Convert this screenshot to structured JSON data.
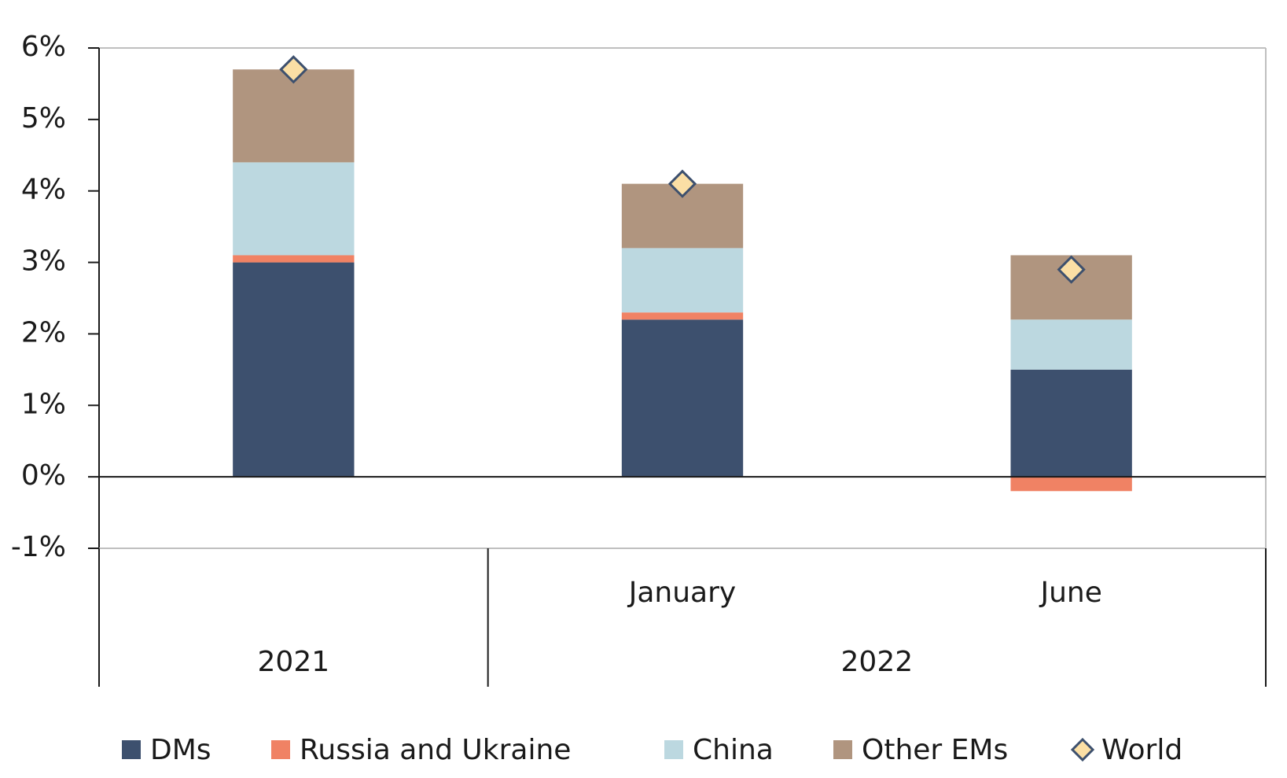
{
  "chart_data": {
    "type": "bar",
    "stacked": true,
    "categories": [
      null,
      "January",
      "June"
    ],
    "groups": [
      {
        "label": "2021",
        "span": 1
      },
      {
        "label": "2022",
        "span": 2
      }
    ],
    "series": [
      {
        "name": "DMs",
        "color": "#3d506e",
        "values": [
          3.0,
          2.2,
          1.5
        ]
      },
      {
        "name": "Russia and Ukraine",
        "color": "#f08264",
        "values": [
          0.1,
          0.1,
          -0.2
        ]
      },
      {
        "name": "China",
        "color": "#bcd8e0",
        "values": [
          1.3,
          0.9,
          0.7
        ]
      },
      {
        "name": "Other EMs",
        "color": "#b0957f",
        "values": [
          1.3,
          0.9,
          0.9
        ]
      },
      {
        "name": "World",
        "type": "scatter",
        "marker": "diamond",
        "color": "#fbdfa5",
        "values": [
          5.7,
          4.1,
          2.9
        ]
      }
    ],
    "ylim": [
      -1,
      6
    ],
    "yticks": [
      {
        "value": -1,
        "label": "-1%"
      },
      {
        "value": 0,
        "label": "0%"
      },
      {
        "value": 1,
        "label": "1%"
      },
      {
        "value": 2,
        "label": "2%"
      },
      {
        "value": 3,
        "label": "3%"
      },
      {
        "value": 4,
        "label": "4%"
      },
      {
        "value": 5,
        "label": "5%"
      },
      {
        "value": 6,
        "label": "6%"
      }
    ],
    "legend": "bottom"
  }
}
